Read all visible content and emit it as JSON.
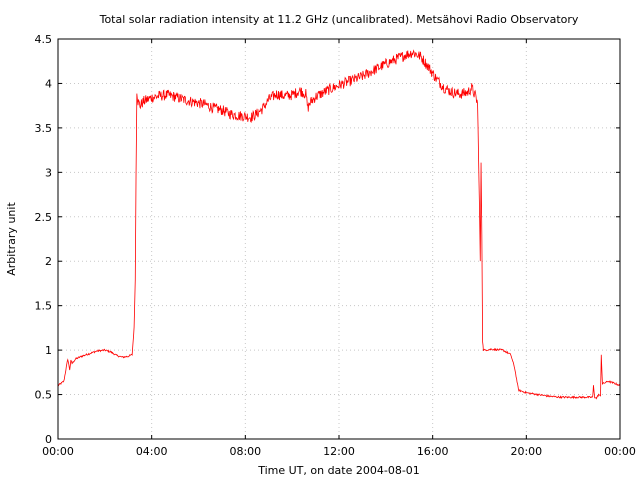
{
  "chart_data": {
    "type": "line",
    "title": "Total solar radiation intensity at 11.2 GHz (uncalibrated). Metsähovi Radio Observatory",
    "xlabel": "Time UT, on date 2004-08-01",
    "ylabel": "Arbitrary unit",
    "xlim": [
      "00:00",
      "24:00"
    ],
    "ylim": [
      0,
      4.5
    ],
    "x_ticks": [
      "00:00",
      "04:00",
      "08:00",
      "12:00",
      "16:00",
      "20:00",
      "00:00"
    ],
    "y_ticks": [
      "0",
      "0.5",
      "1",
      "1.5",
      "2",
      "2.5",
      "3",
      "3.5",
      "4",
      "4.5"
    ],
    "grid": true,
    "series": [
      {
        "color": "#ff0000",
        "x": [
          "00:00",
          "00:15",
          "00:25",
          "00:30",
          "00:33",
          "00:36",
          "00:45",
          "01:00",
          "01:20",
          "01:40",
          "02:00",
          "02:15",
          "02:30",
          "02:45",
          "03:00",
          "03:10",
          "03:15",
          "03:18",
          "03:20",
          "03:22",
          "03:25",
          "03:30",
          "03:40",
          "04:00",
          "04:20",
          "04:40",
          "05:00",
          "05:20",
          "05:40",
          "06:00",
          "06:20",
          "06:40",
          "07:00",
          "07:20",
          "07:40",
          "08:00",
          "08:15",
          "08:30",
          "08:45",
          "09:00",
          "09:20",
          "09:40",
          "10:00",
          "10:20",
          "10:35",
          "10:40",
          "10:45",
          "11:00",
          "11:30",
          "12:00",
          "12:30",
          "13:00",
          "13:30",
          "14:00",
          "14:30",
          "14:50",
          "15:10",
          "15:30",
          "15:50",
          "16:10",
          "16:30",
          "16:50",
          "17:10",
          "17:30",
          "17:40",
          "17:50",
          "17:55",
          "18:00",
          "18:02",
          "18:04",
          "18:06",
          "18:08",
          "18:10",
          "18:15",
          "18:30",
          "19:00",
          "19:20",
          "19:30",
          "19:40",
          "20:00",
          "20:30",
          "21:00",
          "21:30",
          "22:00",
          "22:30",
          "22:50",
          "22:52",
          "22:55",
          "23:00",
          "23:05",
          "23:10",
          "23:12",
          "23:15",
          "23:30",
          "23:50",
          "24:00"
        ],
        "y": [
          0.6,
          0.65,
          0.9,
          0.78,
          0.88,
          0.85,
          0.9,
          0.93,
          0.96,
          0.99,
          1.0,
          0.98,
          0.94,
          0.92,
          0.93,
          0.95,
          1.25,
          1.8,
          3.0,
          3.93,
          3.8,
          3.75,
          3.8,
          3.84,
          3.86,
          3.87,
          3.85,
          3.82,
          3.8,
          3.78,
          3.76,
          3.72,
          3.7,
          3.66,
          3.64,
          3.63,
          3.62,
          3.66,
          3.72,
          3.82,
          3.88,
          3.86,
          3.87,
          3.92,
          3.88,
          3.72,
          3.78,
          3.85,
          3.92,
          3.98,
          4.03,
          4.08,
          4.15,
          4.22,
          4.28,
          4.32,
          4.35,
          4.3,
          4.18,
          4.05,
          3.95,
          3.9,
          3.88,
          3.9,
          3.95,
          3.85,
          3.78,
          2.6,
          2.0,
          3.1,
          2.3,
          1.1,
          1.0,
          1.0,
          1.01,
          1.0,
          0.95,
          0.8,
          0.55,
          0.52,
          0.5,
          0.48,
          0.47,
          0.47,
          0.47,
          0.47,
          0.6,
          0.47,
          0.46,
          0.5,
          0.48,
          0.95,
          0.62,
          0.65,
          0.62,
          0.6
        ]
      }
    ]
  }
}
